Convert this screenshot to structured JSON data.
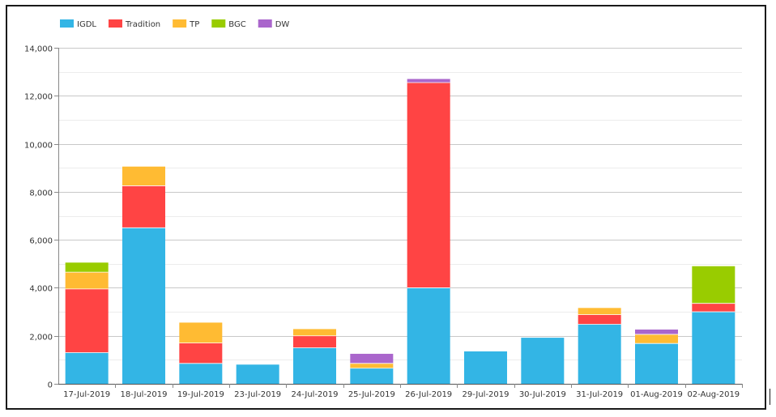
{
  "chart_data": {
    "type": "bar",
    "stacked": true,
    "categories": [
      "17-Jul-2019",
      "18-Jul-2019",
      "19-Jul-2019",
      "23-Jul-2019",
      "24-Jul-2019",
      "25-Jul-2019",
      "26-Jul-2019",
      "29-Jul-2019",
      "30-Jul-2019",
      "31-Jul-2019",
      "01-Aug-2019",
      "02-Aug-2019"
    ],
    "series": [
      {
        "name": "IGDL",
        "color": "#33b5e5",
        "values": [
          1300,
          6500,
          850,
          800,
          1500,
          650,
          4000,
          1350,
          1920,
          2480,
          1680,
          3000
        ]
      },
      {
        "name": "Tradition",
        "color": "#ff4444",
        "values": [
          2650,
          1750,
          850,
          0,
          500,
          0,
          8550,
          0,
          0,
          400,
          0,
          350
        ]
      },
      {
        "name": "TP",
        "color": "#ffbb33",
        "values": [
          700,
          800,
          850,
          0,
          280,
          200,
          0,
          0,
          0,
          280,
          380,
          0
        ]
      },
      {
        "name": "BGC",
        "color": "#99cc00",
        "values": [
          400,
          0,
          0,
          0,
          0,
          0,
          0,
          0,
          0,
          0,
          0,
          1550
        ]
      },
      {
        "name": "DW",
        "color": "#aa66cc",
        "values": [
          0,
          0,
          0,
          0,
          0,
          400,
          150,
          0,
          0,
          0,
          200,
          0
        ]
      }
    ],
    "y_ticks": [
      "0",
      "2,000",
      "4,000",
      "6,000",
      "8,000",
      "10,000",
      "12,000",
      "14,000"
    ],
    "ylim": [
      0,
      14000
    ],
    "legend_position": "top-left",
    "grid": true
  }
}
